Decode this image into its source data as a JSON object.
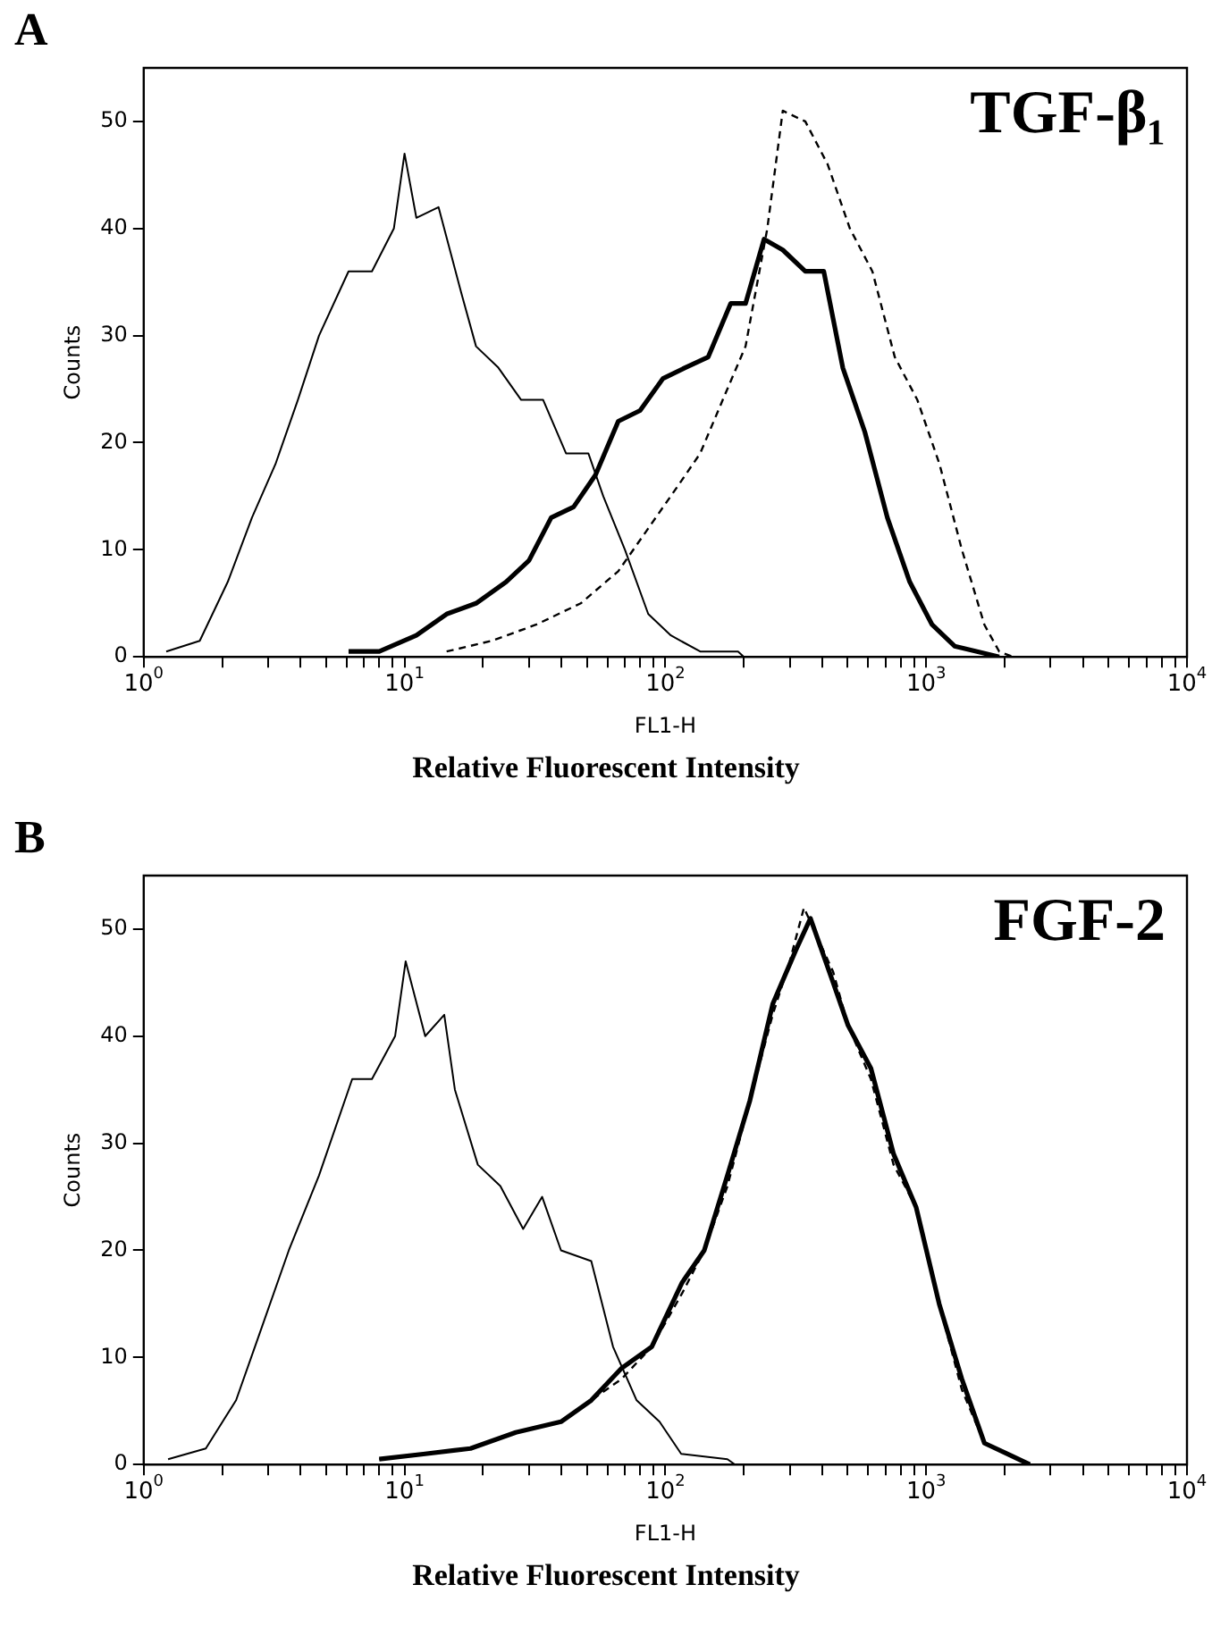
{
  "chart_data": [
    {
      "type": "line",
      "title": "TGF-β₁",
      "xlabel": "FL1-H",
      "ylabel": "Counts",
      "annotations": [
        "A",
        "Relative Fluorescent Intensity"
      ],
      "log": "x",
      "grid": false,
      "legend": false,
      "marker": "none",
      "xlim": [
        1,
        10000
      ],
      "ylim": [
        0,
        55
      ],
      "xticks": [
        {
          "value": 1,
          "label": "10$^{0}$"
        },
        {
          "value": 2,
          "label": null
        },
        {
          "value": 3,
          "label": null
        },
        {
          "value": 4,
          "label": null
        },
        {
          "value": 5,
          "label": null
        },
        {
          "value": 6,
          "label": null
        },
        {
          "value": 7,
          "label": null
        },
        {
          "value": 8,
          "label": null
        },
        {
          "value": 9,
          "label": null
        },
        {
          "value": 10,
          "label": "10$^{1}$"
        },
        {
          "value": 20,
          "label": null
        },
        {
          "value": 30,
          "label": null
        },
        {
          "value": 40,
          "label": null
        },
        {
          "value": 50,
          "label": null
        },
        {
          "value": 60,
          "label": null
        },
        {
          "value": 70,
          "label": null
        },
        {
          "value": 80,
          "label": null
        },
        {
          "value": 90,
          "label": null
        },
        {
          "value": 100,
          "label": "10$^{2}$"
        },
        {
          "value": 200,
          "label": null
        },
        {
          "value": 300,
          "label": null
        },
        {
          "value": 400,
          "label": null
        },
        {
          "value": 500,
          "label": null
        },
        {
          "value": 600,
          "label": null
        },
        {
          "value": 700,
          "label": null
        },
        {
          "value": 800,
          "label": null
        },
        {
          "value": 900,
          "label": null
        },
        {
          "value": 1000,
          "label": "10$^{3}$"
        },
        {
          "value": 2000,
          "label": null
        },
        {
          "value": 3000,
          "label": null
        },
        {
          "value": 4000,
          "label": null
        },
        {
          "value": 5000,
          "label": null
        },
        {
          "value": 6000,
          "label": null
        },
        {
          "value": 7000,
          "label": null
        },
        {
          "value": 8000,
          "label": null
        },
        {
          "value": 9000,
          "label": null
        },
        {
          "value": 10000,
          "label": "10$^{4}$"
        }
      ],
      "yticks": [
        0,
        10,
        20,
        30,
        40,
        50
      ],
      "series": [
        {
          "color": "#000000",
          "line_style": "solid",
          "x": [
            1.22,
            1.64,
            2.1,
            2.6,
            3.2,
            3.9,
            4.7,
            6.1,
            7.5,
            9.1,
            10,
            11.1,
            13.5,
            16.5,
            18.8,
            22.9,
            28,
            34,
            41.6,
            50.7,
            57.8,
            70,
            86,
            105,
            136,
            190,
            200
          ],
          "values": [
            0.5,
            1.5,
            7,
            13,
            18,
            24,
            30,
            36,
            36,
            40,
            47,
            41,
            42,
            34,
            29,
            27,
            24,
            24,
            19,
            19,
            15,
            10,
            4,
            2,
            0.5,
            0.5,
            0
          ]
        },
        {
          "color": "#000000",
          "line_style": "solid",
          "x": [
            6.1,
            8,
            11.1,
            14.5,
            18.8,
            24.5,
            30,
            36.5,
            44.5,
            54,
            66,
            80,
            98,
            119,
            146,
            178,
            203,
            239,
            282,
            344,
            405,
            479,
            582,
            710,
            865,
            1054,
            1285,
            1567,
            1906
          ],
          "values": [
            0.5,
            0.5,
            2,
            4,
            5,
            7,
            9,
            13,
            14,
            17,
            22,
            23,
            26,
            27,
            28,
            33,
            33,
            39,
            38,
            36,
            36,
            27,
            21,
            13,
            7,
            3,
            1,
            0.5,
            0
          ]
        },
        {
          "color": "#000000",
          "line_style": "dashed",
          "x": [
            14.5,
            21.6,
            31.9,
            47.4,
            66,
            86,
            112,
            136,
            166,
            203,
            246,
            282,
            344,
            419,
            510,
            622,
            758,
            925,
            1125,
            1371,
            1672,
            1906,
            2150
          ],
          "values": [
            0.5,
            1.5,
            3,
            5,
            8,
            12,
            16,
            19,
            24,
            29,
            40,
            51,
            50,
            46,
            40,
            36,
            28,
            24,
            18,
            10,
            3,
            0.5,
            0
          ]
        }
      ]
    },
    {
      "type": "line",
      "title": "FGF-2",
      "xlabel": "FL1-H",
      "ylabel": "Counts",
      "annotations": [
        "B",
        "Relative Fluorescent Intensity"
      ],
      "log": "x",
      "grid": false,
      "legend": false,
      "marker": "none",
      "xlim": [
        1,
        10000
      ],
      "ylim": [
        0,
        55
      ],
      "xticks": [
        {
          "value": 1,
          "label": "10$^{0}$"
        },
        {
          "value": 2,
          "label": null
        },
        {
          "value": 3,
          "label": null
        },
        {
          "value": 4,
          "label": null
        },
        {
          "value": 5,
          "label": null
        },
        {
          "value": 6,
          "label": null
        },
        {
          "value": 7,
          "label": null
        },
        {
          "value": 8,
          "label": null
        },
        {
          "value": 9,
          "label": null
        },
        {
          "value": 10,
          "label": "10$^{1}$"
        },
        {
          "value": 20,
          "label": null
        },
        {
          "value": 30,
          "label": null
        },
        {
          "value": 40,
          "label": null
        },
        {
          "value": 50,
          "label": null
        },
        {
          "value": 60,
          "label": null
        },
        {
          "value": 70,
          "label": null
        },
        {
          "value": 80,
          "label": null
        },
        {
          "value": 90,
          "label": null
        },
        {
          "value": 100,
          "label": "10$^{2}$"
        },
        {
          "value": 200,
          "label": null
        },
        {
          "value": 300,
          "label": null
        },
        {
          "value": 400,
          "label": null
        },
        {
          "value": 500,
          "label": null
        },
        {
          "value": 600,
          "label": null
        },
        {
          "value": 700,
          "label": null
        },
        {
          "value": 800,
          "label": null
        },
        {
          "value": 900,
          "label": null
        },
        {
          "value": 1000,
          "label": "10$^{3}$"
        },
        {
          "value": 2000,
          "label": null
        },
        {
          "value": 3000,
          "label": null
        },
        {
          "value": 4000,
          "label": null
        },
        {
          "value": 5000,
          "label": null
        },
        {
          "value": 6000,
          "label": null
        },
        {
          "value": 7000,
          "label": null
        },
        {
          "value": 8000,
          "label": null
        },
        {
          "value": 9000,
          "label": null
        },
        {
          "value": 10000,
          "label": "10$^{4}$"
        }
      ],
      "yticks": [
        0,
        10,
        20,
        30,
        40,
        50
      ],
      "series": [
        {
          "color": "#000000",
          "line_style": "solid",
          "x": [
            1.24,
            1.73,
            2.26,
            2.76,
            3.6,
            4.7,
            6.3,
            7.5,
            9.2,
            10.1,
            12,
            14.2,
            15.6,
            19.1,
            23.3,
            28.5,
            33.7,
            39.8,
            52,
            63,
            77.6,
            95,
            115,
            173,
            185
          ],
          "values": [
            0.5,
            1.5,
            6,
            12,
            20,
            27,
            36,
            36,
            40,
            47,
            40,
            42,
            35,
            28,
            26,
            22,
            25,
            20,
            19,
            11,
            6,
            4,
            1,
            0.5,
            0
          ]
        },
        {
          "color": "#000000",
          "line_style": "solid",
          "x": [
            8,
            12,
            17.9,
            26.7,
            39.8,
            52,
            68,
            88.7,
            116,
            141,
            173,
            211,
            258,
            316,
            360,
            440,
            502,
            614,
            750,
            916,
            1122,
            1370,
            1672,
            2043,
            2496
          ],
          "values": [
            0.5,
            1,
            1.5,
            3,
            4,
            6,
            9,
            11,
            17,
            20,
            27,
            34,
            43,
            48,
            51,
            45,
            41,
            37,
            29,
            24,
            15,
            8,
            2,
            1,
            0
          ]
        },
        {
          "color": "#000000",
          "line_style": "dashed",
          "x": [
            8,
            12,
            17.9,
            26.7,
            39.8,
            52,
            68,
            88.7,
            116,
            141,
            173,
            211,
            258,
            300,
            340,
            440,
            502,
            614,
            750,
            916,
            1122,
            1370,
            1672,
            2043,
            2496
          ],
          "values": [
            0.5,
            1,
            1.5,
            3,
            4,
            6,
            8,
            11,
            16,
            20,
            26,
            34,
            42,
            47,
            52,
            46,
            41,
            36,
            28,
            24,
            15,
            7,
            2,
            1,
            0
          ]
        }
      ]
    }
  ]
}
